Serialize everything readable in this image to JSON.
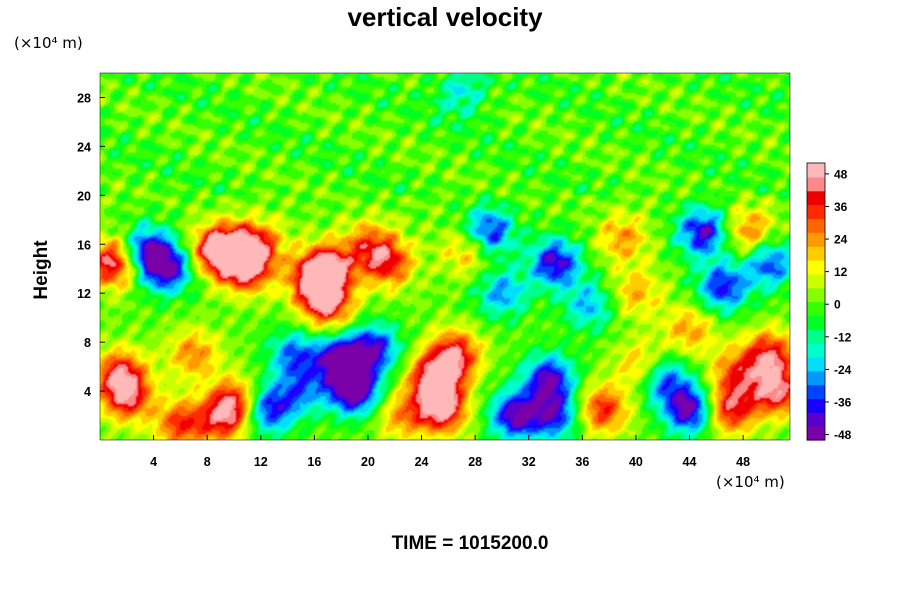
{
  "chart_data": {
    "type": "heatmap",
    "title": "vertical velocity",
    "ylabel": "Height",
    "xunit": "(×10⁴ m)",
    "yunit": "(×10⁴ m)",
    "time_label": "TIME = 1015200.0",
    "xlim": [
      0,
      51.5
    ],
    "ylim": [
      0,
      30
    ],
    "xticks": [
      4,
      8,
      12,
      16,
      20,
      24,
      28,
      32,
      36,
      40,
      44,
      48
    ],
    "yticks": [
      4,
      8,
      12,
      16,
      20,
      24,
      28
    ],
    "colorbar": {
      "range": [
        -50,
        52
      ],
      "ticks": [
        48,
        36,
        24,
        12,
        0,
        -12,
        -24,
        -36,
        -48
      ],
      "colors": [
        "#7a00a8",
        "#5a00c8",
        "#1a00ff",
        "#0044ff",
        "#0099ff",
        "#00ddff",
        "#00ffcc",
        "#00ff88",
        "#00ff22",
        "#33ff00",
        "#88ff00",
        "#ccff00",
        "#ffff00",
        "#ffcc00",
        "#ff9900",
        "#ff6600",
        "#ff2a00",
        "#ee0000",
        "#ff8888",
        "#ffb8b8"
      ]
    },
    "features": [
      {
        "x": 2,
        "y": 3.5,
        "w": 0.75
      },
      {
        "x": 1.5,
        "y": 5.5,
        "w": 0.7
      },
      {
        "x": 1,
        "y": 14.5,
        "w": 0.9
      },
      {
        "x": 3.5,
        "y": 15.5,
        "w": -0.8
      },
      {
        "x": 5,
        "y": 14,
        "w": -0.85
      },
      {
        "x": 6,
        "y": 1.3,
        "w": 0.65
      },
      {
        "x": 7,
        "y": 7,
        "w": 0.5
      },
      {
        "x": 8.5,
        "y": 15.5,
        "w": 0.7
      },
      {
        "x": 10,
        "y": 15.5,
        "w": 0.85
      },
      {
        "x": 11,
        "y": 14,
        "w": 0.75
      },
      {
        "x": 10,
        "y": 3,
        "w": 0.8
      },
      {
        "x": 9,
        "y": 1.5,
        "w": 0.5
      },
      {
        "x": 12.5,
        "y": 2.5,
        "w": -0.8
      },
      {
        "x": 12,
        "y": 16,
        "w": 0.5
      },
      {
        "x": 14.5,
        "y": 7,
        "w": -0.6
      },
      {
        "x": 15,
        "y": 4,
        "w": -0.5
      },
      {
        "x": 17,
        "y": 14,
        "w": 0.9
      },
      {
        "x": 17,
        "y": 11,
        "w": 0.75
      },
      {
        "x": 16,
        "y": 13,
        "w": 0.75
      },
      {
        "x": 19,
        "y": 4,
        "w": -1
      },
      {
        "x": 18,
        "y": 6.5,
        "w": -1
      },
      {
        "x": 20.5,
        "y": 7.5,
        "w": -0.75
      },
      {
        "x": 21.5,
        "y": 14.5,
        "w": 0.7
      },
      {
        "x": 20,
        "y": 16,
        "w": 0.5
      },
      {
        "x": 22.5,
        "y": 2,
        "w": 0.45
      },
      {
        "x": 25,
        "y": 5,
        "w": 0.95
      },
      {
        "x": 25.5,
        "y": 2.5,
        "w": 0.9
      },
      {
        "x": 26.5,
        "y": 7,
        "w": 0.8
      },
      {
        "x": 27.5,
        "y": 15.5,
        "w": 0.45
      },
      {
        "x": 29,
        "y": 17,
        "w": -0.8
      },
      {
        "x": 30,
        "y": 12,
        "w": -0.55
      },
      {
        "x": 31,
        "y": 2,
        "w": -0.9
      },
      {
        "x": 33.5,
        "y": 5,
        "w": -0.85
      },
      {
        "x": 34,
        "y": 2,
        "w": -0.7
      },
      {
        "x": 34,
        "y": 14.5,
        "w": -0.85
      },
      {
        "x": 36.5,
        "y": 11,
        "w": -0.5
      },
      {
        "x": 37.5,
        "y": 2.5,
        "w": 0.7
      },
      {
        "x": 39,
        "y": 16.5,
        "w": 0.45
      },
      {
        "x": 40.5,
        "y": 6,
        "w": 0.5
      },
      {
        "x": 42,
        "y": 5,
        "w": -0.7
      },
      {
        "x": 44,
        "y": 2.5,
        "w": -0.95
      },
      {
        "x": 45,
        "y": 17,
        "w": -0.85
      },
      {
        "x": 46.5,
        "y": 12.5,
        "w": -0.75
      },
      {
        "x": 47,
        "y": 2.5,
        "w": 0.8
      },
      {
        "x": 47.5,
        "y": 5.5,
        "w": 0.55
      },
      {
        "x": 48.5,
        "y": 17,
        "w": 0.55
      },
      {
        "x": 50,
        "y": 14.5,
        "w": -0.7
      },
      {
        "x": 50.5,
        "y": 4,
        "w": 0.85
      },
      {
        "x": 50,
        "y": 7,
        "w": 0.75
      },
      {
        "x": 40,
        "y": 12,
        "w": 0.4
      },
      {
        "x": 44,
        "y": 9,
        "w": 0.45
      },
      {
        "x": 27,
        "y": 28.5,
        "w": -0.4
      }
    ]
  }
}
